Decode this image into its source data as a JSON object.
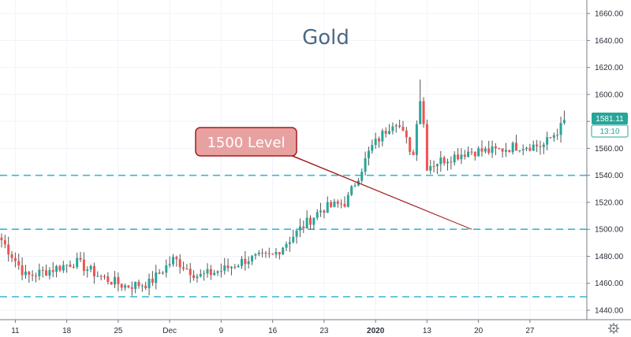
{
  "chart_data": {
    "type": "candlestick",
    "title": "Gold",
    "xlabel": "",
    "ylabel": "",
    "ylim": [
      1433,
      1670
    ],
    "y_ticks": [
      1440,
      1460,
      1480,
      1500,
      1520,
      1540,
      1560,
      1580,
      1600,
      1620,
      1640,
      1660
    ],
    "y_tick_labels": [
      "1440.00",
      "1460.00",
      "1480.00",
      "1500.00",
      "1520.00",
      "1540.00",
      "1560.00",
      "1580.00",
      "1600.00",
      "1620.00",
      "1640.00",
      "1660.00"
    ],
    "x_tick_labels": [
      "11",
      "18",
      "25",
      "Dec",
      "9",
      "16",
      "23",
      "2020",
      "13",
      "20",
      "27"
    ],
    "grid": true,
    "colors": {
      "up": "#26a69a",
      "down": "#ef5350",
      "wick": "#555555",
      "level_line": "#3bb8d0",
      "callout_fill": "#e8a1a1",
      "callout_border": "#a31c1c",
      "price_tag": "#26a69a"
    },
    "horizontal_levels": [
      1450,
      1500,
      1540
    ],
    "annotation": {
      "text": "1500 Level",
      "points_to": {
        "session": 137,
        "price": 1500
      }
    },
    "last_price": "1581.11",
    "countdown": "13:10",
    "weekly_closes": [
      1492,
      1465,
      1470,
      1476,
      1465,
      1458,
      1460,
      1478,
      1465,
      1470,
      1478,
      1480,
      1498,
      1515,
      1520,
      1560,
      1582,
      1545,
      1552,
      1558,
      1558,
      1562,
      1562,
      1581
    ],
    "candle_count": 165
  },
  "settings": {
    "icon": "gear-icon"
  }
}
